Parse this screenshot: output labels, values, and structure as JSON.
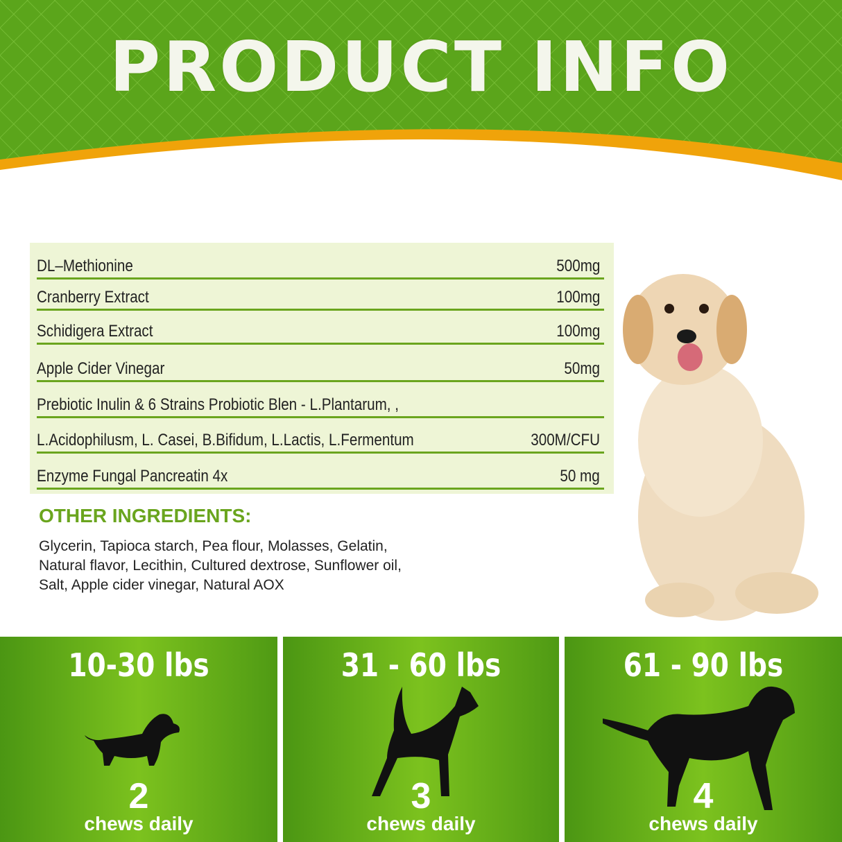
{
  "header": {
    "title": "PRODUCT INFO",
    "colors": {
      "green": "#5aa41a",
      "orange": "#f0a30a"
    }
  },
  "ingredients": [
    {
      "name": "DL–Methionine",
      "amount": "500mg"
    },
    {
      "name": "Cranberry Extract",
      "amount": "100mg"
    },
    {
      "name": "Schidigera Extract",
      "amount": "100mg"
    },
    {
      "name": "Apple Cider Vinegar",
      "amount": "50mg"
    },
    {
      "name": "Prebiotic Inulin & 6 Strains Probiotic Blen - L.Plantarum, ,",
      "amount": ""
    },
    {
      "name": "L.Acidophilusm, L. Casei, B.Bifidum, L.Lactis, L.Fermentum",
      "amount": "300M/CFU"
    },
    {
      "name": "Enzyme Fungal Pancreatin 4x",
      "amount": "50 mg"
    }
  ],
  "other": {
    "title": "OTHER INGREDIENTS:",
    "lines": [
      "Glycerin, Tapioca starch, Pea flour, Molasses, Gelatin,",
      "Natural flavor, Lecithin, Cultured dextrose, Sunflower oil,",
      "Salt, Apple cider vinegar, Natural AOX"
    ]
  },
  "dosage": [
    {
      "range": "10-30 lbs",
      "count": "2",
      "label": "chews daily",
      "icon": "small-dog-silhouette-icon"
    },
    {
      "range": "31 - 60 lbs",
      "count": "3",
      "label": "chews daily",
      "icon": "medium-dog-silhouette-icon"
    },
    {
      "range": "61 - 90 lbs",
      "count": "4",
      "label": "chews daily",
      "icon": "large-dog-silhouette-icon"
    }
  ]
}
